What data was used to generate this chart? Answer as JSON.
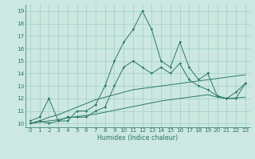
{
  "xlabel": "Humidex (Indice chaleur)",
  "x": [
    0,
    1,
    2,
    3,
    4,
    5,
    6,
    7,
    8,
    9,
    10,
    11,
    12,
    13,
    14,
    15,
    16,
    17,
    18,
    19,
    20,
    21,
    22,
    23
  ],
  "y_spike1": [
    10.2,
    10.5,
    12.0,
    10.2,
    10.2,
    11.0,
    11.0,
    11.5,
    13.0,
    15.0,
    16.5,
    17.5,
    19.0,
    17.5,
    15.0,
    14.5,
    16.5,
    14.5,
    13.5,
    14.0,
    12.2,
    12.0,
    12.5,
    13.2
  ],
  "y_spike2": [
    10.0,
    10.2,
    10.0,
    10.2,
    10.5,
    10.5,
    10.5,
    11.0,
    11.3,
    13.0,
    14.5,
    15.0,
    14.5,
    14.0,
    14.5,
    14.0,
    14.8,
    13.5,
    13.0,
    12.7,
    12.2,
    12.0,
    12.0,
    13.2
  ],
  "y_smooth_upper": [
    10.0,
    10.2,
    10.5,
    10.7,
    11.0,
    11.3,
    11.6,
    11.9,
    12.1,
    12.3,
    12.5,
    12.7,
    12.8,
    12.9,
    13.0,
    13.1,
    13.2,
    13.3,
    13.4,
    13.5,
    13.6,
    13.7,
    13.8,
    13.9
  ],
  "y_smooth_lower": [
    10.0,
    10.1,
    10.2,
    10.3,
    10.45,
    10.55,
    10.65,
    10.75,
    10.9,
    11.05,
    11.2,
    11.35,
    11.5,
    11.65,
    11.8,
    11.9,
    12.0,
    12.1,
    12.2,
    12.3,
    12.1,
    12.0,
    12.05,
    12.1
  ],
  "line_color": "#2a7868",
  "bg_color": "#cce8e0",
  "grid_color": "#9ecfc4",
  "ylim": [
    9.7,
    19.5
  ],
  "xlim": [
    -0.5,
    23.5
  ],
  "yticks": [
    10,
    11,
    12,
    13,
    14,
    15,
    16,
    17,
    18,
    19
  ],
  "xticks": [
    0,
    1,
    2,
    3,
    4,
    5,
    6,
    7,
    8,
    9,
    10,
    11,
    12,
    13,
    14,
    15,
    16,
    17,
    18,
    19,
    20,
    21,
    22,
    23
  ],
  "tick_labelsize": 5.2,
  "xlabel_fontsize": 5.8
}
